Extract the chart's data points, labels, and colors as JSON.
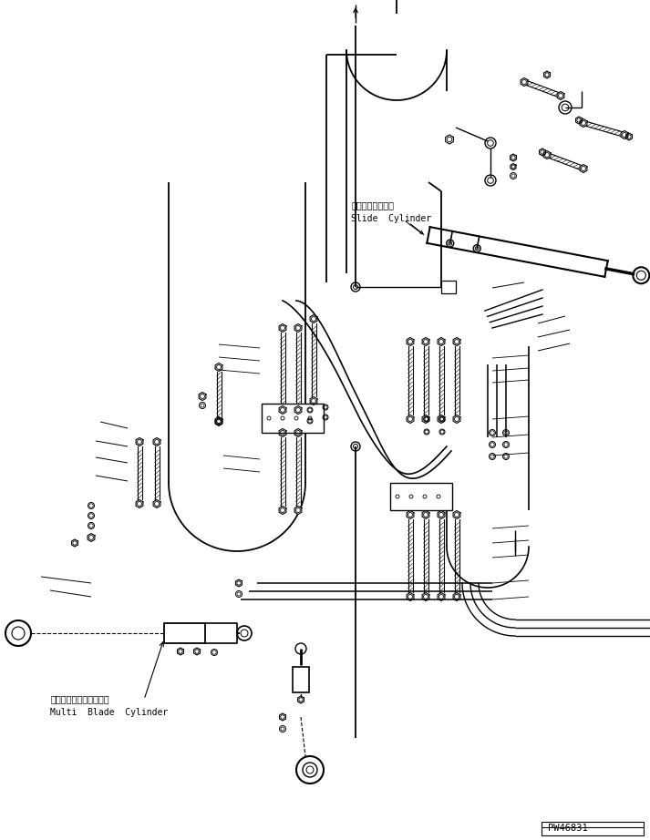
{
  "background_color": "#ffffff",
  "line_color": "#000000",
  "fig_width": 7.13,
  "fig_height": 9.22,
  "dpi": 100,
  "label_slide_cylinder_jp": "スライドシリンダ",
  "label_slide_cylinder_en": "Slide  Cylinder",
  "label_multi_blade_jp": "マルチブレードシリンダ",
  "label_multi_blade_en": "Multi  Blade  Cylinder",
  "label_part_number": "PW46831",
  "font_size_label": 7,
  "font_size_partnumber": 7.5
}
